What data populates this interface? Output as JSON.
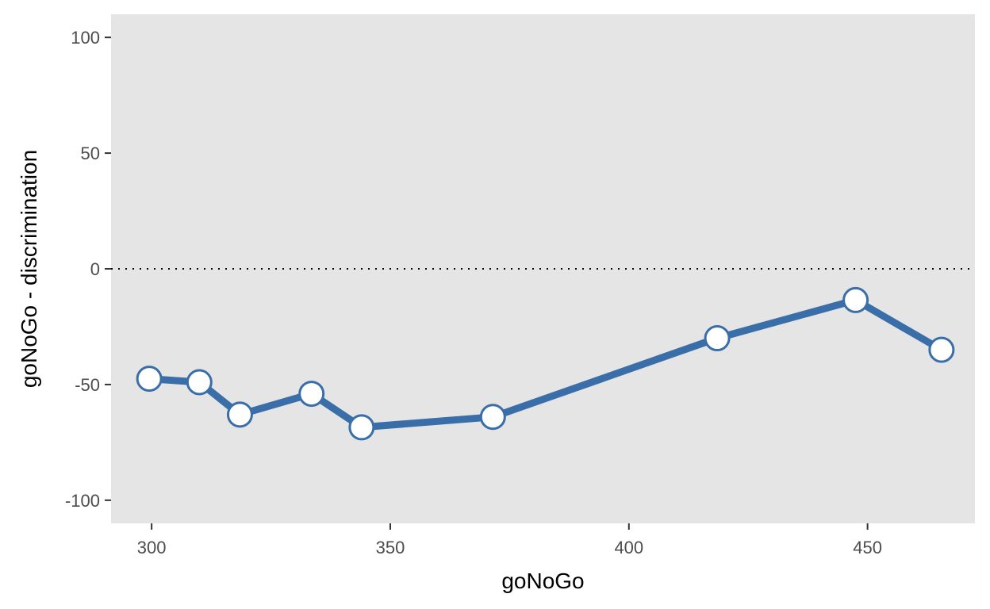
{
  "chart_data": {
    "type": "line",
    "xlabel": "goNoGo",
    "ylabel": "goNoGo - discrimination",
    "xlim": [
      291.5,
      472.5
    ],
    "ylim": [
      -110,
      110
    ],
    "x_ticks": [
      300,
      350,
      400,
      450
    ],
    "x_tick_labels": [
      "300",
      "350",
      "400",
      "450"
    ],
    "y_ticks": [
      100,
      50,
      0,
      -50,
      -100
    ],
    "y_tick_labels": [
      "100",
      "50",
      "0",
      "-50",
      "-100"
    ],
    "reference_line": {
      "y": 0,
      "style": "dotted"
    },
    "grid": false,
    "series": [
      {
        "x": [
          299.5,
          310,
          318.5,
          333.5,
          344,
          371.5,
          418.5,
          447.5,
          465.5
        ],
        "y": [
          -47.5,
          -49,
          -63,
          -54,
          -68.5,
          -64,
          -30,
          -13.5,
          -35
        ]
      }
    ],
    "colors": {
      "panel_background": "#e5e5e5",
      "line": "#3a6ea8",
      "marker_fill": "#ffffff",
      "marker_stroke": "#3a6ea8",
      "reference_line": "#000000"
    }
  }
}
